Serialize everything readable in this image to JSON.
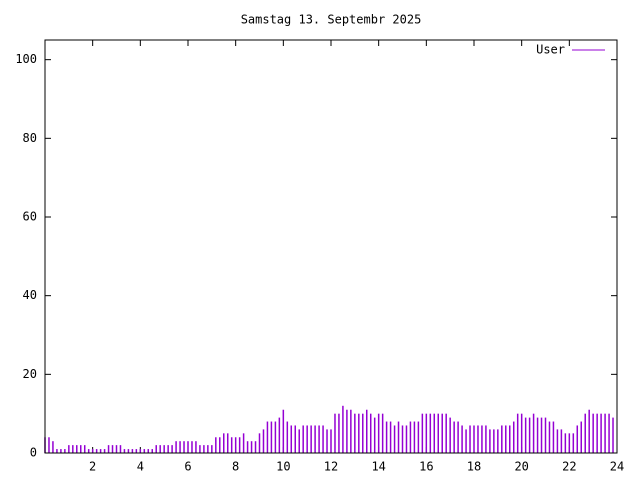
{
  "chart_data": {
    "type": "impulses",
    "title": "Samstag 13. Septembr 2025",
    "x": [
      0,
      0.167,
      0.333,
      0.5,
      0.667,
      0.833,
      1,
      1.167,
      1.333,
      1.5,
      1.667,
      1.833,
      2,
      2.167,
      2.333,
      2.5,
      2.667,
      2.833,
      3,
      3.167,
      3.333,
      3.5,
      3.667,
      3.833,
      4,
      4.167,
      4.333,
      4.5,
      4.667,
      4.833,
      5,
      5.167,
      5.333,
      5.5,
      5.667,
      5.833,
      6,
      6.167,
      6.333,
      6.5,
      6.667,
      6.833,
      7,
      7.167,
      7.333,
      7.5,
      7.667,
      7.833,
      8,
      8.167,
      8.333,
      8.5,
      8.667,
      8.833,
      9,
      9.167,
      9.333,
      9.5,
      9.667,
      9.833,
      10,
      10.167,
      10.333,
      10.5,
      10.667,
      10.833,
      11,
      11.167,
      11.333,
      11.5,
      11.667,
      11.833,
      12,
      12.167,
      12.333,
      12.5,
      12.667,
      12.833,
      13,
      13.167,
      13.333,
      13.5,
      13.667,
      13.833,
      14,
      14.167,
      14.333,
      14.5,
      14.667,
      14.833,
      15,
      15.167,
      15.333,
      15.5,
      15.667,
      15.833,
      16,
      16.167,
      16.333,
      16.5,
      16.667,
      16.833,
      17,
      17.167,
      17.333,
      17.5,
      17.667,
      17.833,
      18,
      18.167,
      18.333,
      18.5,
      18.667,
      18.833,
      19,
      19.167,
      19.333,
      19.5,
      19.667,
      19.833,
      20,
      20.167,
      20.333,
      20.5,
      20.667,
      20.833,
      21,
      21.167,
      21.333,
      21.5,
      21.667,
      21.833,
      22,
      22.167,
      22.333,
      22.5,
      22.667,
      22.833,
      23,
      23.167,
      23.333,
      23.5,
      23.667,
      23.833
    ],
    "series": [
      {
        "name": "User",
        "color": "#9400d3",
        "values": [
          4,
          4,
          3,
          1,
          1,
          1,
          2,
          2,
          2,
          2,
          2,
          1,
          1,
          1,
          1,
          1,
          2,
          2,
          2,
          2,
          1,
          1,
          1,
          1,
          1,
          1,
          1,
          1,
          2,
          2,
          2,
          2,
          2,
          3,
          3,
          3,
          3,
          3,
          3,
          2,
          2,
          2,
          2,
          4,
          4,
          5,
          5,
          4,
          4,
          4,
          5,
          3,
          3,
          3,
          5,
          6,
          8,
          8,
          8,
          9,
          11,
          8,
          7,
          7,
          6,
          7,
          7,
          7,
          7,
          7,
          7,
          6,
          6,
          10,
          10,
          12,
          11,
          11,
          10,
          10,
          10,
          11,
          10,
          9,
          10,
          10,
          8,
          8,
          7,
          8,
          7,
          7,
          8,
          8,
          8,
          10,
          10,
          10,
          10,
          10,
          10,
          10,
          9,
          8,
          8,
          7,
          6,
          7,
          7,
          7,
          7,
          7,
          6,
          6,
          6,
          7,
          7,
          7,
          8,
          10,
          10,
          9,
          9,
          10,
          9,
          9,
          9,
          8,
          8,
          6,
          6,
          5,
          5,
          5,
          7,
          8,
          10,
          11,
          10,
          10,
          10,
          10,
          10,
          9
        ]
      }
    ],
    "xlim": [
      0,
      24
    ],
    "xticks": [
      2,
      4,
      6,
      8,
      10,
      12,
      14,
      16,
      18,
      20,
      22,
      24
    ],
    "ylim": [
      0,
      105
    ],
    "yticks": [
      0,
      20,
      40,
      60,
      80,
      100
    ],
    "legend": "top-right"
  }
}
